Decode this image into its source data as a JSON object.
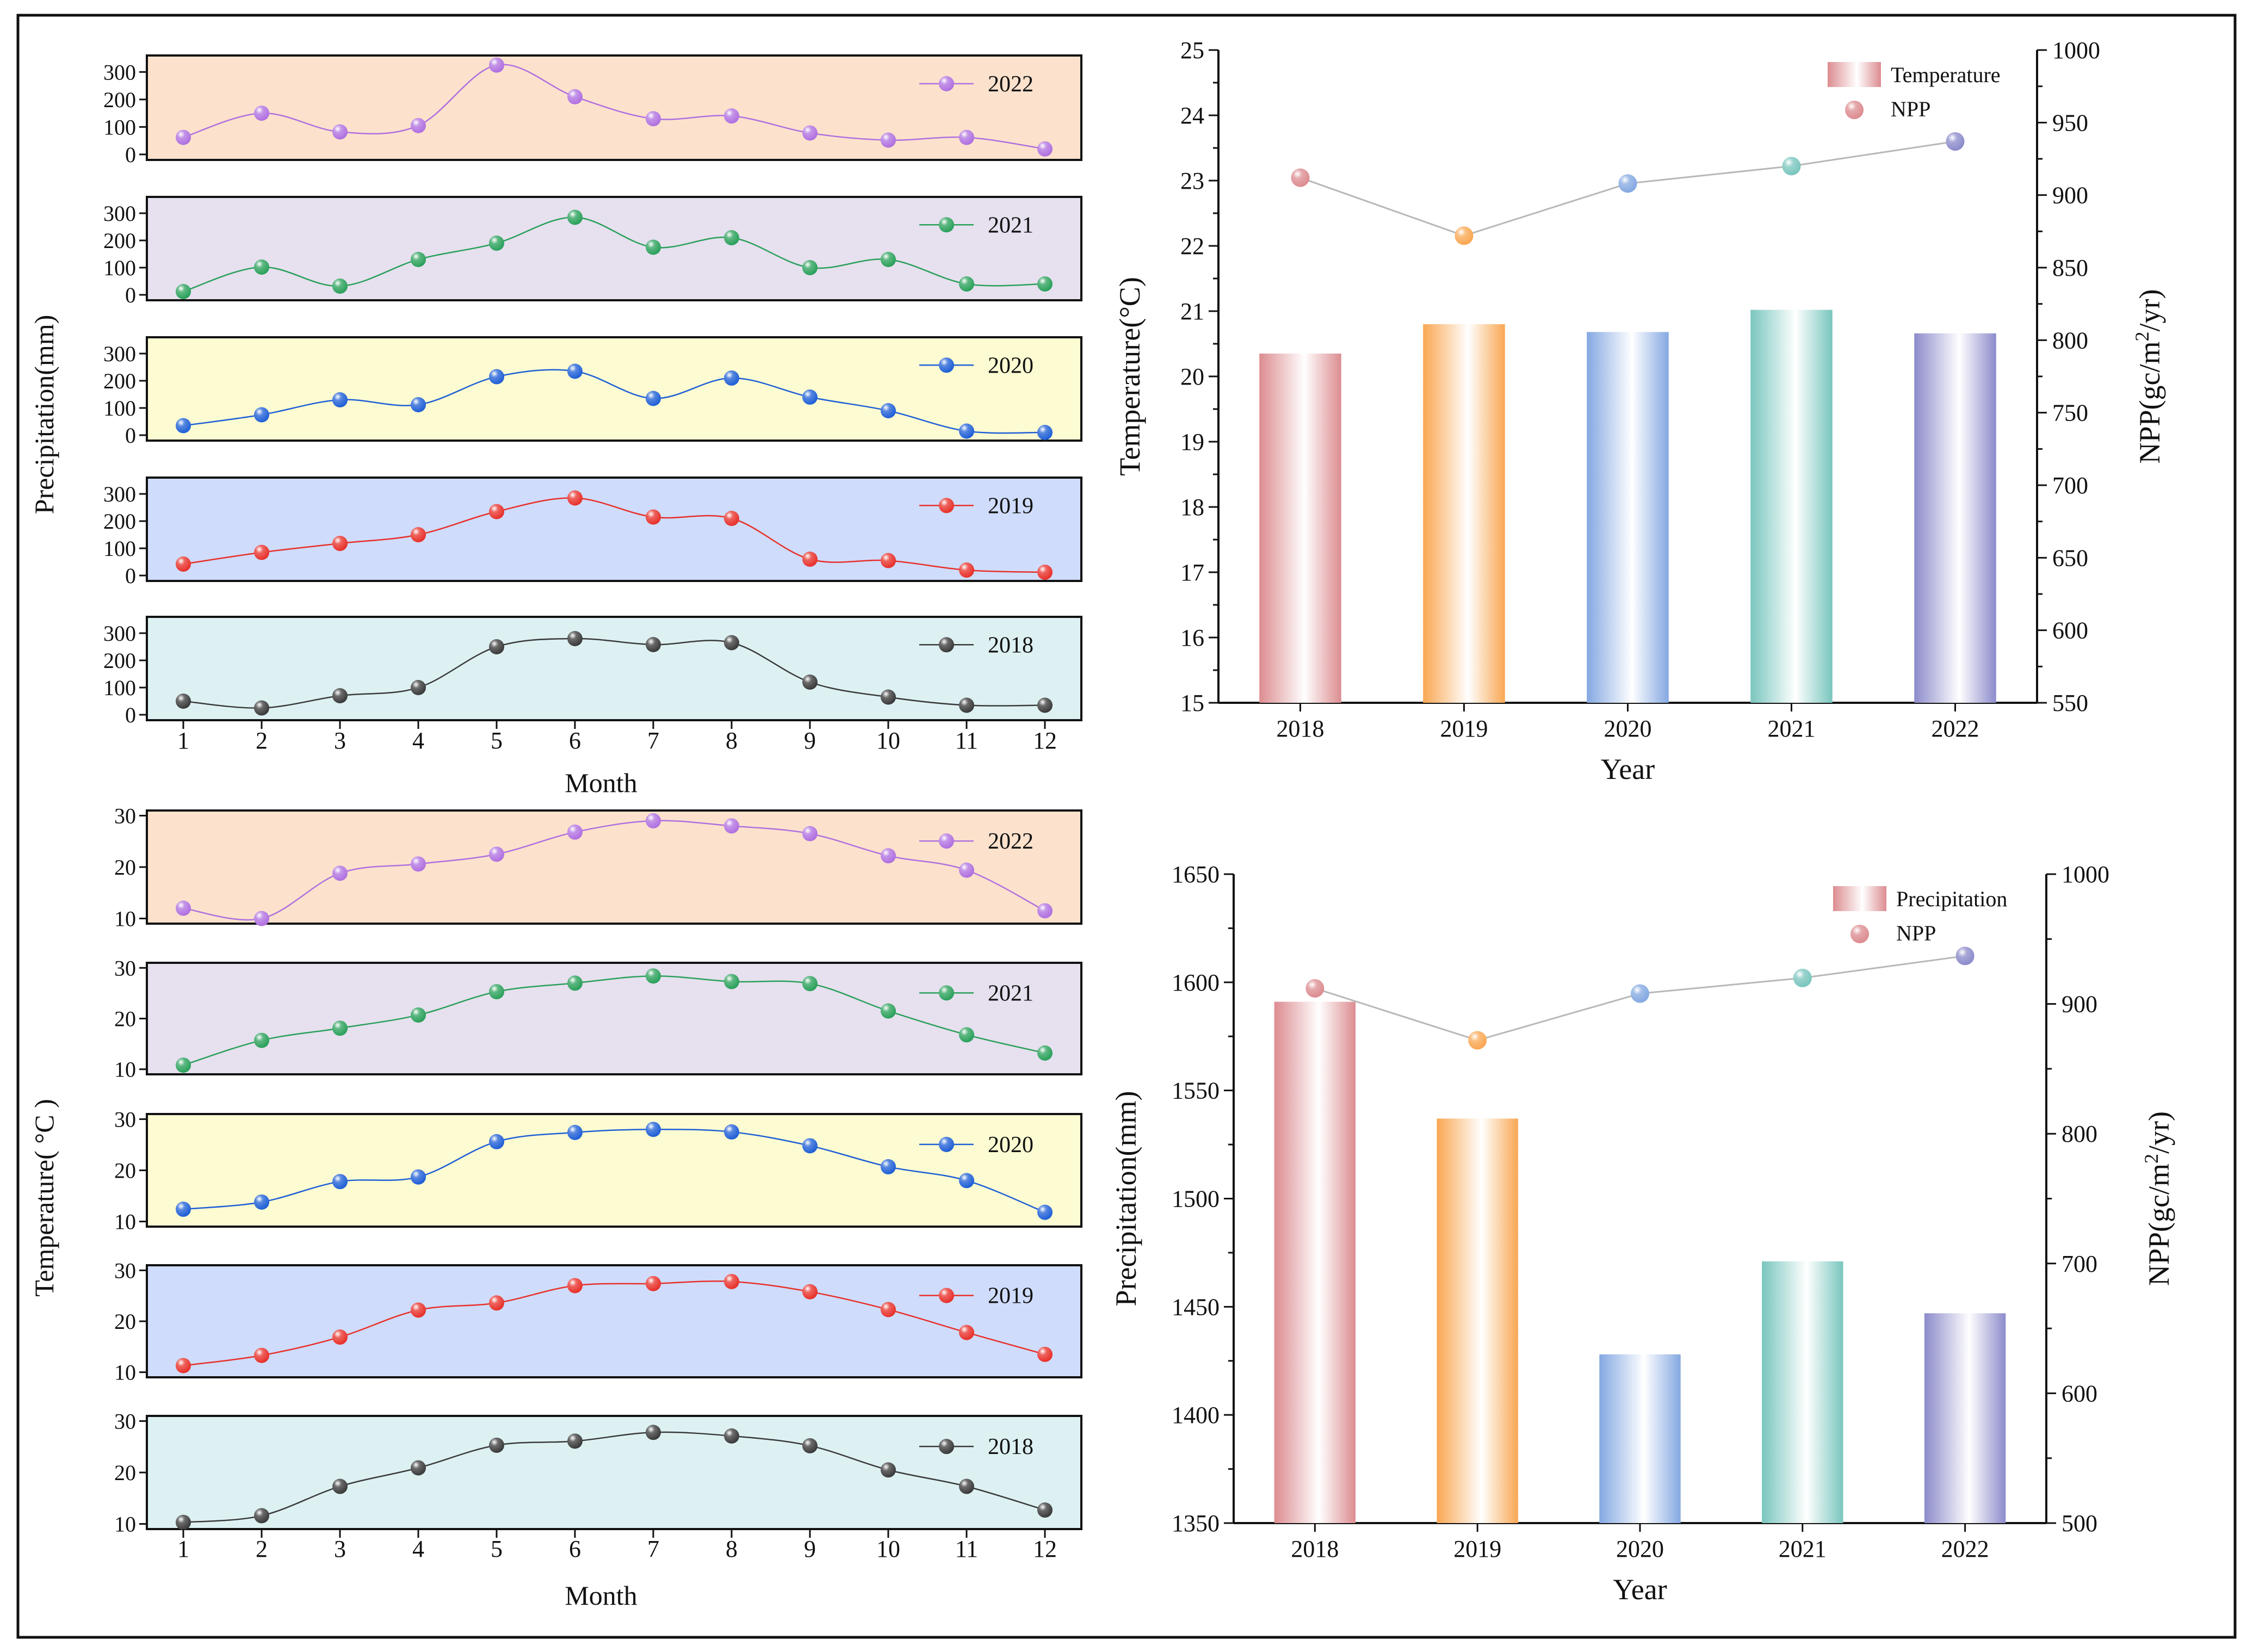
{
  "months": [
    "1",
    "2",
    "3",
    "4",
    "5",
    "6",
    "7",
    "8",
    "9",
    "10",
    "11",
    "12"
  ],
  "series_colors": {
    "2018": "#3a3a3a",
    "2019": "#e8302a",
    "2020": "#1f5fd6",
    "2021": "#2aa05a",
    "2022": "#b070e0"
  },
  "panel_backgrounds": {
    "2018": "#ddf1f3",
    "2019": "#cfdcfb",
    "2020": "#fcfbd2",
    "2021": "#e6e0ef",
    "2022": "#fce2cc"
  },
  "year_colors": {
    "2018": "#dc8c90",
    "2019": "#f9a752",
    "2020": "#84a8e2",
    "2021": "#79c6be",
    "2022": "#8c8bcb"
  },
  "chart_data": [
    {
      "id": "monthly-precipitation",
      "type": "line",
      "xlabel": "Month",
      "ylabel": "Precipitation(mm)",
      "ylim": [
        -20,
        360
      ],
      "yticks": [
        0,
        100,
        200,
        300
      ],
      "categories": [
        "1",
        "2",
        "3",
        "4",
        "5",
        "6",
        "7",
        "8",
        "9",
        "10",
        "11",
        "12"
      ],
      "series": [
        {
          "name": "2022",
          "values": [
            62,
            150,
            82,
            105,
            325,
            210,
            130,
            140,
            78,
            52,
            62,
            20
          ]
        },
        {
          "name": "2021",
          "values": [
            12,
            102,
            32,
            130,
            190,
            285,
            175,
            210,
            100,
            130,
            40,
            40
          ]
        },
        {
          "name": "2020",
          "values": [
            35,
            75,
            130,
            112,
            215,
            235,
            135,
            210,
            140,
            90,
            15,
            10
          ]
        },
        {
          "name": "2019",
          "values": [
            42,
            85,
            118,
            150,
            235,
            285,
            215,
            210,
            60,
            55,
            20,
            12
          ]
        },
        {
          "name": "2018",
          "values": [
            50,
            25,
            70,
            100,
            250,
            280,
            258,
            265,
            120,
            65,
            35,
            35
          ]
        }
      ]
    },
    {
      "id": "monthly-temperature",
      "type": "line",
      "xlabel": "Month",
      "ylabel": "Temperature( °C )",
      "ylim": [
        9,
        31
      ],
      "yticks": [
        10,
        20,
        30
      ],
      "categories": [
        "1",
        "2",
        "3",
        "4",
        "5",
        "6",
        "7",
        "8",
        "9",
        "10",
        "11",
        "12"
      ],
      "series": [
        {
          "name": "2022",
          "values": [
            12,
            10,
            18.8,
            20.6,
            22.5,
            26.8,
            29,
            28,
            26.5,
            22.2,
            19.4,
            11.5
          ]
        },
        {
          "name": "2021",
          "values": [
            10.8,
            15.7,
            18.1,
            20.7,
            25.3,
            27,
            28.4,
            27.3,
            26.9,
            21.5,
            16.8,
            13.2
          ]
        },
        {
          "name": "2020",
          "values": [
            12.4,
            13.8,
            17.8,
            18.7,
            25.6,
            27.4,
            28,
            27.5,
            24.8,
            20.7,
            18,
            11.8
          ]
        },
        {
          "name": "2019",
          "values": [
            11.3,
            13.3,
            16.9,
            22.2,
            23.6,
            27,
            27.4,
            27.8,
            25.8,
            22.3,
            17.8,
            13.5
          ]
        },
        {
          "name": "2018",
          "values": [
            10.3,
            11.6,
            17.3,
            20.9,
            25.3,
            26.1,
            27.8,
            27.1,
            25.2,
            20.5,
            17.3,
            12.7
          ]
        }
      ]
    },
    {
      "id": "annual-temperature-npp",
      "type": "bar",
      "title": "",
      "xlabel": "Year",
      "ylabel": "Temperature(°C)",
      "y2label": "NPP(gc/m2/yr)",
      "categories": [
        "2018",
        "2019",
        "2020",
        "2021",
        "2022"
      ],
      "ylim": [
        15,
        25
      ],
      "yticks": [
        15,
        16,
        17,
        18,
        19,
        20,
        21,
        22,
        23,
        24,
        25
      ],
      "y2lim": [
        550,
        1000
      ],
      "y2ticks": [
        550,
        600,
        650,
        700,
        750,
        800,
        850,
        900,
        950,
        1000
      ],
      "series": [
        {
          "name": "Temperature",
          "kind": "bar",
          "axis": "left",
          "values": [
            20.35,
            20.8,
            20.68,
            21.02,
            20.66
          ]
        },
        {
          "name": "NPP",
          "kind": "line",
          "axis": "right",
          "values": [
            912,
            872,
            908,
            920,
            937
          ]
        }
      ],
      "legend": "top-right"
    },
    {
      "id": "annual-precipitation-npp",
      "type": "bar",
      "title": "",
      "xlabel": "Year",
      "ylabel": "Precipitation(mm)",
      "y2label": "NPP(gc/m2/yr)",
      "categories": [
        "2018",
        "2019",
        "2020",
        "2021",
        "2022"
      ],
      "ylim": [
        1350,
        1650
      ],
      "yticks": [
        1350,
        1400,
        1450,
        1500,
        1550,
        1600,
        1650
      ],
      "y2lim": [
        500,
        1000
      ],
      "y2ticks": [
        500,
        600,
        700,
        800,
        900,
        1000
      ],
      "series": [
        {
          "name": "Precipitation",
          "kind": "bar",
          "axis": "left",
          "values": [
            1591,
            1537,
            1428,
            1471,
            1447
          ]
        },
        {
          "name": "NPP",
          "kind": "line",
          "axis": "right",
          "values": [
            912,
            872,
            908,
            920,
            937
          ]
        }
      ],
      "legend": "top-right"
    }
  ]
}
